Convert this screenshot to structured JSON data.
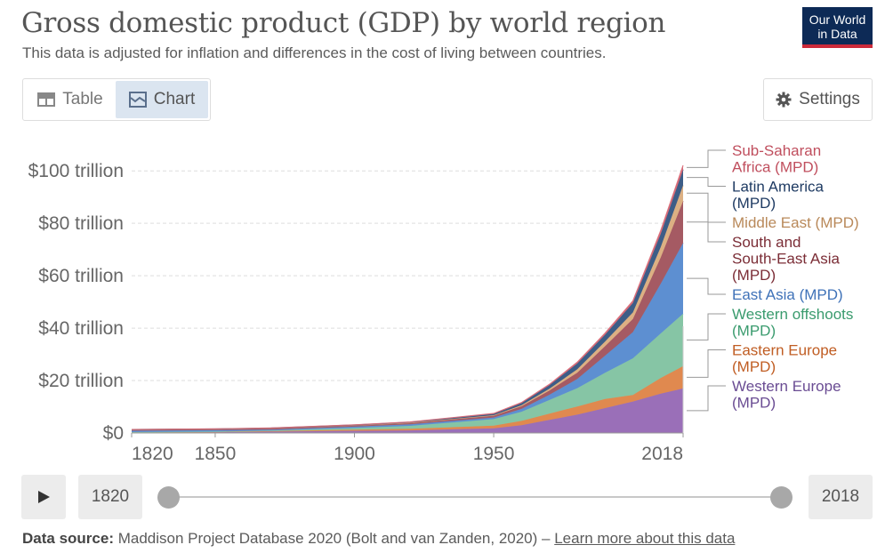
{
  "header": {
    "title": "Gross domestic product (GDP) by world region",
    "subtitle": "This data is adjusted for inflation and differences in the cost of living between countries.",
    "logo_line1": "Our World",
    "logo_line2": "in Data"
  },
  "tabs": [
    {
      "label": "Table",
      "icon": "table-icon",
      "active": false
    },
    {
      "label": "Chart",
      "icon": "chart-icon",
      "active": true
    }
  ],
  "settings": {
    "label": "Settings",
    "icon": "gear-icon"
  },
  "timeline": {
    "start_year": "1820",
    "end_year": "2018",
    "start_value": 1820,
    "end_value": 2018
  },
  "footer": {
    "source_label": "Data source:",
    "source_text": "Maddison Project Database 2020 (Bolt and van Zanden, 2020) – ",
    "link_text": "Learn more about this data"
  },
  "chart_data": {
    "type": "area",
    "stacked": true,
    "x": [
      1820,
      1850,
      1870,
      1900,
      1920,
      1950,
      1960,
      1970,
      1980,
      1990,
      2000,
      2010,
      2018
    ],
    "xticks": [
      1820,
      1850,
      1900,
      1950,
      2018
    ],
    "xtick_labels": [
      "1820",
      "1850",
      "1900",
      "1950",
      "2018"
    ],
    "ylim": [
      0,
      115
    ],
    "yticks": [
      0,
      20,
      40,
      60,
      80,
      100
    ],
    "ytick_labels": [
      "$0",
      "$20 trillion",
      "$40 trillion",
      "$60 trillion",
      "$80 trillion",
      "$100 trillion"
    ],
    "grid": true,
    "legend_position": "right",
    "series": [
      {
        "name": "Western Europe (MPD)",
        "color": "#9a6fb8",
        "values": [
          0.2,
          0.3,
          0.5,
          0.8,
          1.0,
          1.8,
          3.0,
          5.0,
          7.0,
          9.5,
          12.0,
          15.0,
          17.0
        ]
      },
      {
        "name": "Eastern Europe (MPD)",
        "color": "#e0894f",
        "values": [
          0.1,
          0.15,
          0.2,
          0.5,
          0.6,
          1.0,
          1.6,
          2.4,
          3.1,
          3.5,
          2.5,
          6.0,
          8.5
        ]
      },
      {
        "name": "Western offshoots (MPD)",
        "color": "#86c5a5",
        "values": [
          0.05,
          0.1,
          0.2,
          0.6,
          1.1,
          2.5,
          3.5,
          5.2,
          7.0,
          10.0,
          14.0,
          17.0,
          20.0
        ]
      },
      {
        "name": "East Asia (MPD)",
        "color": "#5d8fd1",
        "values": [
          0.5,
          0.5,
          0.4,
          0.5,
          0.6,
          0.6,
          1.1,
          2.0,
          3.5,
          6.5,
          10.0,
          19.0,
          27.0
        ]
      },
      {
        "name": "South and South-East Asia (MPD)",
        "color": "#a55a63",
        "values": [
          0.4,
          0.4,
          0.45,
          0.5,
          0.55,
          0.7,
          1.0,
          1.6,
          2.4,
          3.6,
          5.0,
          10.0,
          16.0
        ]
      },
      {
        "name": "Middle East (MPD)",
        "color": "#dcb083",
        "values": [
          0.03,
          0.03,
          0.04,
          0.05,
          0.08,
          0.2,
          0.4,
          0.7,
          1.3,
          1.8,
          2.5,
          4.0,
          6.0
        ]
      },
      {
        "name": "Latin America (MPD)",
        "color": "#3d5d87",
        "values": [
          0.03,
          0.05,
          0.07,
          0.12,
          0.2,
          0.5,
          0.8,
          1.3,
          2.2,
          2.6,
          3.6,
          5.0,
          6.0
        ]
      },
      {
        "name": "Sub-Saharan Africa (MPD)",
        "color": "#d86a77",
        "values": [
          0.02,
          0.03,
          0.04,
          0.06,
          0.08,
          0.15,
          0.25,
          0.35,
          0.5,
          0.6,
          0.8,
          1.3,
          1.6
        ]
      }
    ],
    "legend_lines": [
      {
        "series": 7,
        "lines": [
          "Sub-Saharan",
          "Africa (MPD)"
        ]
      },
      {
        "series": 6,
        "lines": [
          "Latin America",
          "(MPD)"
        ]
      },
      {
        "series": 5,
        "lines": [
          "Middle East (MPD)"
        ]
      },
      {
        "series": 4,
        "lines": [
          "South and",
          "South-East Asia",
          "(MPD)"
        ]
      },
      {
        "series": 3,
        "lines": [
          "East Asia (MPD)"
        ]
      },
      {
        "series": 2,
        "lines": [
          "Western offshoots",
          "(MPD)"
        ]
      },
      {
        "series": 1,
        "lines": [
          "Eastern Europe",
          "(MPD)"
        ]
      },
      {
        "series": 0,
        "lines": [
          "Western Europe",
          "(MPD)"
        ]
      }
    ],
    "legend_text_colors": [
      "#6a4c93",
      "#c05d23",
      "#3a9b6e",
      "#3f72b8",
      "#7b2d36",
      "#b9895a",
      "#1f3b63",
      "#c04f5e"
    ]
  }
}
